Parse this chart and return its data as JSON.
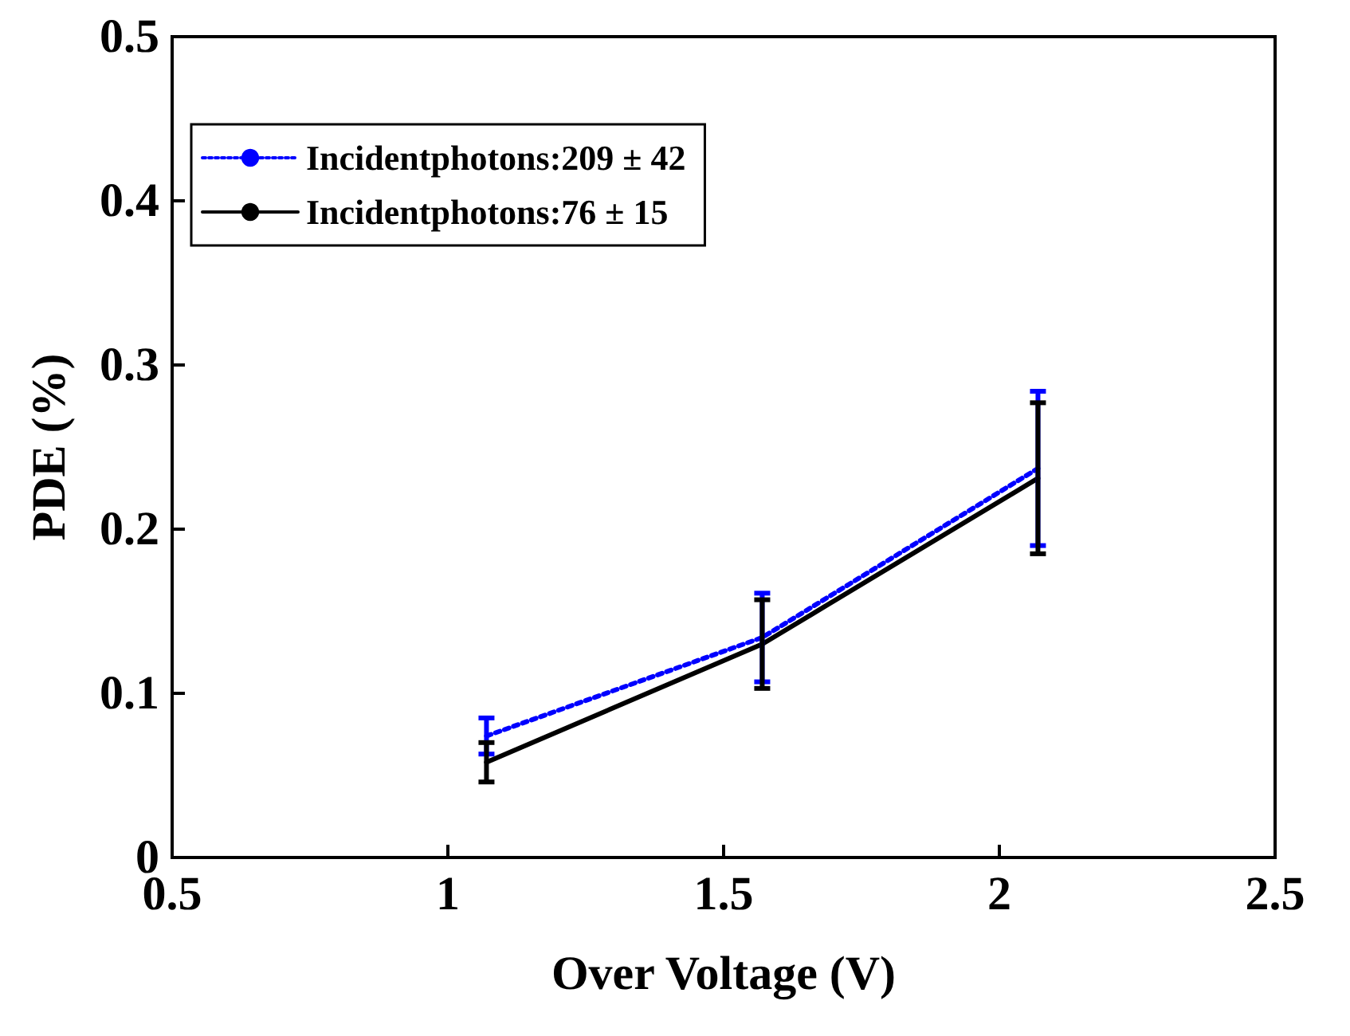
{
  "chart_data": {
    "type": "line",
    "xlabel": "Over Voltage (V)",
    "ylabel": "PDE (%)",
    "x": [
      1.07,
      1.57,
      2.07
    ],
    "series": [
      {
        "name": "Incidentphotons:209 ± 42",
        "color": "#0000ff",
        "line_style": "dotted",
        "values": [
          0.074,
          0.134,
          0.237
        ],
        "errors": [
          0.011,
          0.027,
          0.047
        ]
      },
      {
        "name": "Incidentphotons:76 ± 15",
        "color": "#000000",
        "line_style": "solid",
        "values": [
          0.058,
          0.13,
          0.231
        ],
        "errors": [
          0.012,
          0.027,
          0.046
        ]
      }
    ],
    "xlim": [
      0.5,
      2.5
    ],
    "xticks": [
      0.5,
      1,
      1.5,
      2,
      2.5
    ],
    "ylim": [
      0,
      0.5
    ],
    "yticks": [
      0,
      0.1,
      0.2,
      0.3,
      0.4,
      0.5
    ],
    "grid": false,
    "legend": "top left",
    "marker": "none"
  }
}
